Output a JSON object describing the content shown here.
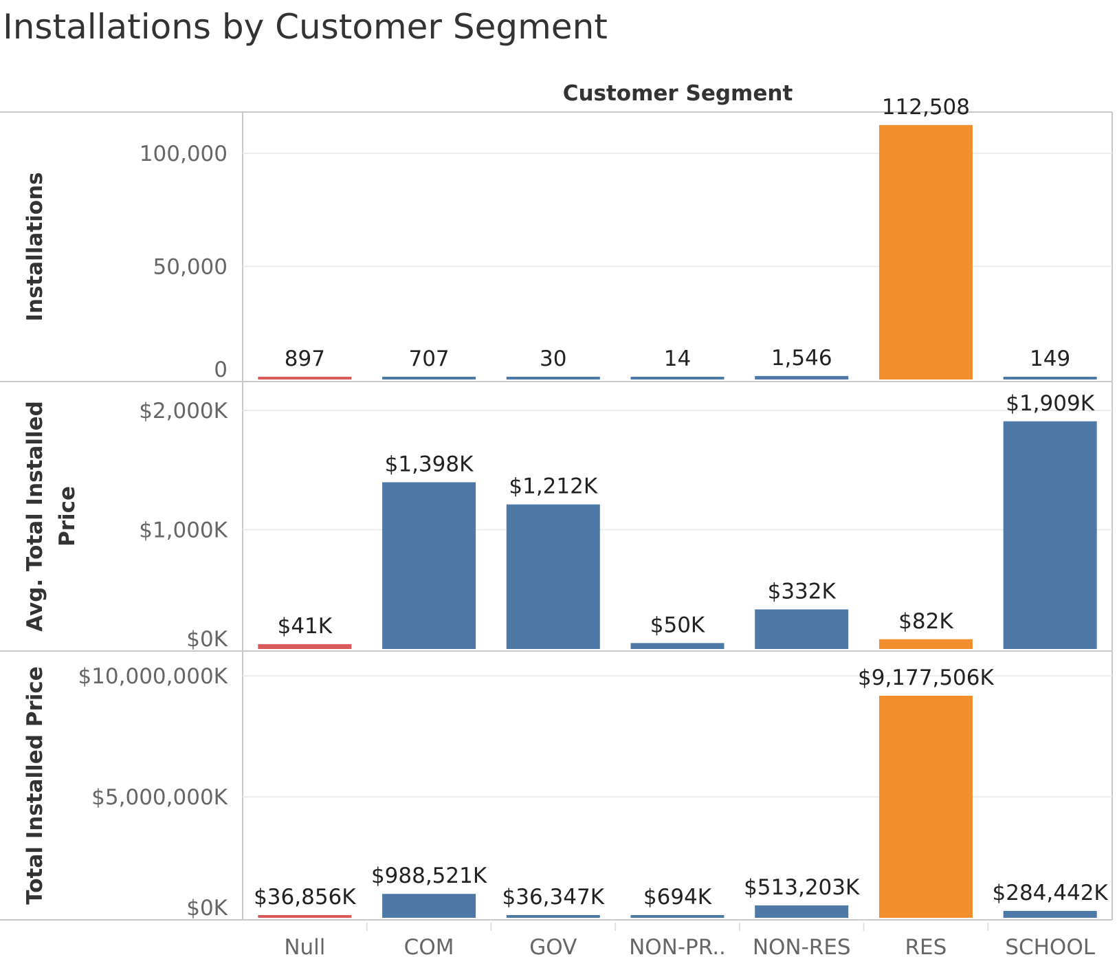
{
  "chart_data": {
    "type": "bar",
    "title": "Installations by Customer Segment",
    "column_header": "Customer Segment",
    "categories": [
      "Null",
      "COM",
      "GOV",
      "NON-PR..",
      "NON-RES",
      "RES",
      "SCHOOL"
    ],
    "highlight_colors": {
      "Null": "#d85a5a",
      "RES": "#f28e2b",
      "default": "#4e79a7"
    },
    "panels": [
      {
        "ylabel": "Installations",
        "ylabel_lines": [
          "Installations"
        ],
        "ylim": [
          0,
          126000
        ],
        "ticks": [
          0,
          50000,
          100000
        ],
        "tick_labels": [
          "0",
          "50,000",
          "100,000"
        ],
        "values": [
          897,
          707,
          30,
          14,
          1546,
          112508,
          149
        ],
        "value_labels": [
          "897",
          "707",
          "30",
          "14",
          "1,546",
          "112,508",
          "149"
        ]
      },
      {
        "ylabel": "Avg. Total Installed Price",
        "ylabel_lines": [
          "Avg. Total Installed",
          "Price"
        ],
        "ylim": [
          0,
          2200
        ],
        "ticks": [
          0,
          1000,
          2000
        ],
        "tick_labels": [
          "$0K",
          "$1,000K",
          "$2,000K"
        ],
        "values": [
          41,
          1398,
          1212,
          50,
          332,
          82,
          1909
        ],
        "value_labels": [
          "$41K",
          "$1,398K",
          "$1,212K",
          "$50K",
          "$332K",
          "$82K",
          "$1,909K"
        ]
      },
      {
        "ylabel": "Total Installed Price",
        "ylabel_lines": [
          "Total Installed Price"
        ],
        "ylim": [
          0,
          10150000
        ],
        "ticks": [
          0,
          5000000,
          10000000
        ],
        "tick_labels": [
          "$0K",
          "$5,000,000K",
          "$10,000,000K"
        ],
        "values": [
          36856,
          988521,
          36347,
          694,
          513203,
          9177506,
          284442
        ],
        "value_labels": [
          "$36,856K",
          "$988,521K",
          "$36,347K",
          "$694K",
          "$513,203K",
          "$9,177,506K",
          "$284,442K"
        ]
      }
    ],
    "grid": true,
    "legend": "none"
  }
}
